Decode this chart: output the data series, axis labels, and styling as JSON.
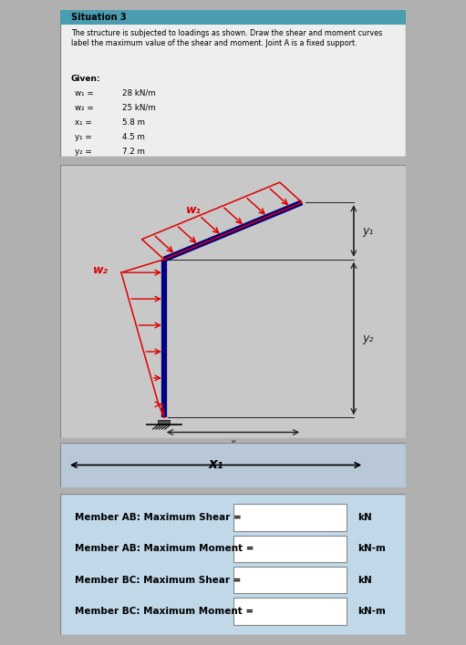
{
  "title_box": {
    "title": "Situation 3",
    "description": "The structure is subjected to loadings as shown. Draw the shear and moment curves\nlabel the maximum value of the shear and moment. Joint A is a fixed support.",
    "given_label": "Given:",
    "params": [
      {
        "name": "w₁ =",
        "value": "28 kN/m"
      },
      {
        "name": "w₂ =",
        "value": "25 kN/m"
      },
      {
        "name": "x₁ =",
        "value": "5.8 m"
      },
      {
        "name": "y₁ =",
        "value": "4.5 m"
      },
      {
        "name": "y₂ =",
        "value": "7.2 m"
      }
    ],
    "bg_color": "#eeeeee",
    "header_color": "#4a9db0",
    "border_color": "#888888"
  },
  "diagram": {
    "bg_color": "#c8c8c8",
    "load_color": "#dd0000",
    "struct_color": "#000080",
    "dim_color": "#222222",
    "w1_label": "w₁",
    "w2_label": "w₂",
    "y1_label": "y₁",
    "y2_label": "y₂",
    "x1_label": "x₁"
  },
  "x1strip": {
    "bg_color": "#b8c8d8"
  },
  "answer_box": {
    "bg_color": "#c0d8e8",
    "border_color": "#888888",
    "lines": [
      "Member AB: Maximum Shear =",
      "Member AB: Maximum Moment =",
      "Member BC: Maximum Shear =",
      "Member BC: Maximum Moment ="
    ],
    "units": [
      "kN",
      "kN-m",
      "kN",
      "kN-m"
    ]
  }
}
